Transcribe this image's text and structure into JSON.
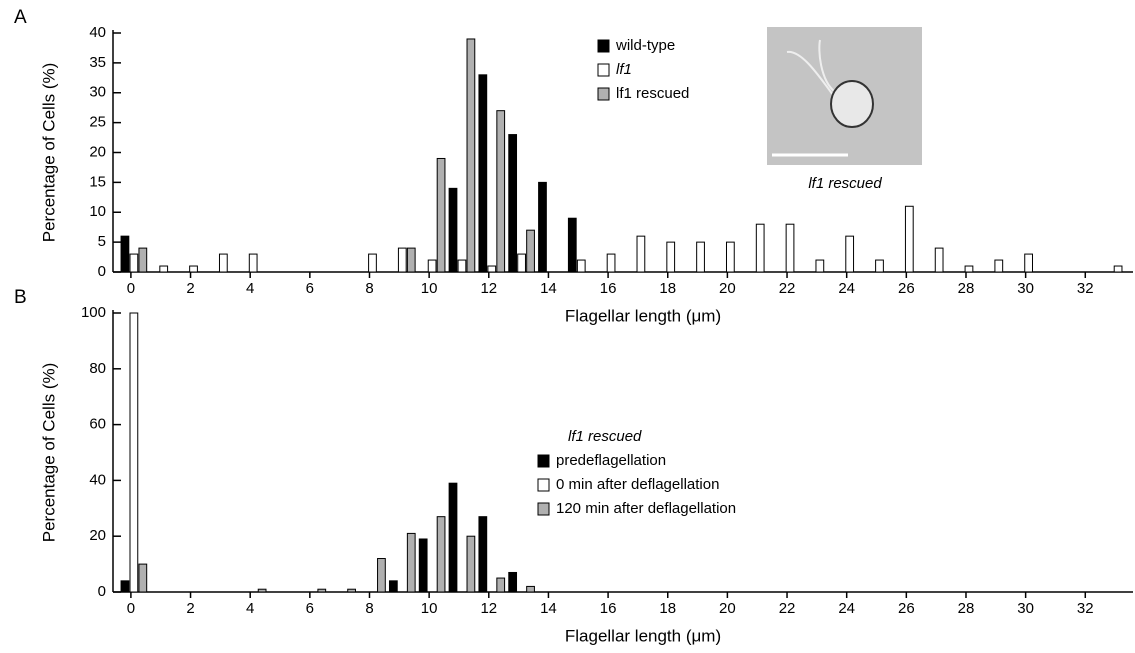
{
  "chart_data": [
    {
      "type": "bar",
      "panel": "A",
      "x_label": "Flagellar length (μm)",
      "y_label": "Percentage of Cells (%)",
      "x": [
        0,
        1,
        2,
        3,
        4,
        5,
        6,
        7,
        8,
        9,
        10,
        11,
        12,
        13,
        14,
        15,
        16,
        17,
        18,
        19,
        20,
        21,
        22,
        23,
        24,
        25,
        26,
        27,
        28,
        29,
        30,
        31,
        32,
        33
      ],
      "xlim": [
        -0.6,
        33.6
      ],
      "xticks": [
        0,
        2,
        4,
        6,
        8,
        10,
        12,
        14,
        16,
        18,
        20,
        22,
        24,
        26,
        28,
        30,
        32
      ],
      "ylim": [
        0,
        40
      ],
      "yticks": [
        0,
        5,
        10,
        15,
        20,
        25,
        30,
        35,
        40
      ],
      "series": [
        {
          "name": "wild-type",
          "color": "#000000",
          "values": [
            6,
            0,
            0,
            0,
            0,
            0,
            0,
            0,
            0,
            0,
            0,
            14,
            33,
            23,
            15,
            9,
            0,
            0,
            0,
            0,
            0,
            0,
            0,
            0,
            0,
            0,
            0,
            0,
            0,
            0,
            0,
            0,
            0,
            0
          ]
        },
        {
          "name": "lf1",
          "color": "#ffffff",
          "values": [
            3,
            1,
            1,
            3,
            3,
            0,
            0,
            0,
            3,
            4,
            2,
            2,
            1,
            3,
            0,
            2,
            3,
            6,
            5,
            5,
            5,
            8,
            8,
            2,
            6,
            2,
            11,
            4,
            1,
            2,
            3,
            0,
            0,
            1
          ]
        },
        {
          "name": "lf1 rescued",
          "color": "#b0b0b0",
          "values": [
            4,
            0,
            0,
            0,
            0,
            0,
            0,
            0,
            0,
            4,
            19,
            39,
            27,
            7,
            0,
            0,
            0,
            0,
            0,
            0,
            0,
            0,
            0,
            0,
            0,
            0,
            0,
            0,
            0,
            0,
            0,
            0,
            0,
            0
          ]
        }
      ],
      "inset_caption": "lf1 rescued"
    },
    {
      "type": "bar",
      "panel": "B",
      "x_label": "Flagellar length (μm)",
      "y_label": "Percentage of Cells (%)",
      "x": [
        0,
        1,
        2,
        3,
        4,
        5,
        6,
        7,
        8,
        9,
        10,
        11,
        12,
        13,
        14,
        15,
        16,
        17,
        18,
        19,
        20,
        21,
        22,
        23,
        24,
        25,
        26,
        27,
        28,
        29,
        30,
        31,
        32,
        33
      ],
      "xlim": [
        -0.6,
        33.6
      ],
      "xticks": [
        0,
        2,
        4,
        6,
        8,
        10,
        12,
        14,
        16,
        18,
        20,
        22,
        24,
        26,
        28,
        30,
        32
      ],
      "ylim": [
        0,
        100
      ],
      "yticks": [
        0,
        20,
        40,
        60,
        80,
        100
      ],
      "legend_title": "lf1 rescued",
      "series": [
        {
          "name": "predeflagellation",
          "color": "#000000",
          "values": [
            4,
            0,
            0,
            0,
            0,
            0,
            0,
            0,
            0,
            4,
            19,
            39,
            27,
            7,
            0,
            0,
            0,
            0,
            0,
            0,
            0,
            0,
            0,
            0,
            0,
            0,
            0,
            0,
            0,
            0,
            0,
            0,
            0,
            0
          ]
        },
        {
          "name": "0 min after deflagellation",
          "color": "#ffffff",
          "values": [
            100,
            0,
            0,
            0,
            0,
            0,
            0,
            0,
            0,
            0,
            0,
            0,
            0,
            0,
            0,
            0,
            0,
            0,
            0,
            0,
            0,
            0,
            0,
            0,
            0,
            0,
            0,
            0,
            0,
            0,
            0,
            0,
            0,
            0
          ]
        },
        {
          "name": "120 min after deflagellation",
          "color": "#b0b0b0",
          "values": [
            10,
            0,
            0,
            0,
            1,
            0,
            1,
            1,
            12,
            21,
            27,
            20,
            5,
            2,
            0,
            0,
            0,
            0,
            0,
            0,
            0,
            0,
            0,
            0,
            0,
            0,
            0,
            0,
            0,
            0,
            0,
            0,
            0,
            0
          ]
        }
      ]
    }
  ]
}
